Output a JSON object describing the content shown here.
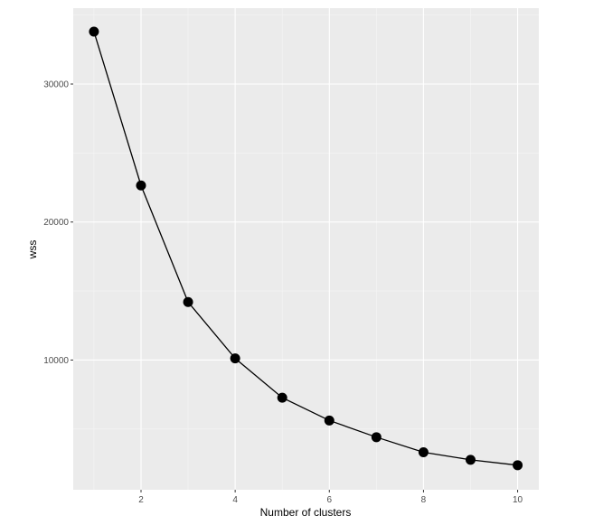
{
  "chart_data": {
    "type": "line",
    "title": "",
    "xlabel": "Number of clusters",
    "ylabel": "wss",
    "x": [
      1,
      2,
      3,
      4,
      5,
      6,
      7,
      8,
      9,
      10
    ],
    "series": [
      {
        "values": [
          33800,
          22650,
          14200,
          10120,
          7270,
          5620,
          4410,
          3320,
          2770,
          2380
        ]
      }
    ],
    "xlim": [
      0.56,
      10.45
    ],
    "ylim": [
      600,
      35500
    ],
    "x_ticks": [
      2,
      4,
      6,
      8,
      10
    ],
    "x_tick_labels": [
      "2",
      "4",
      "6",
      "8",
      "10"
    ],
    "y_ticks": [
      10000,
      20000,
      30000
    ],
    "y_tick_labels": [
      "10000",
      "20000",
      "30000"
    ],
    "grid": true,
    "legend": "none",
    "colors": {
      "panel_background": "#ebebeb",
      "grid_major": "#ffffff",
      "grid_minor": "#f5f5f5",
      "line": "#000000",
      "point": "#000000",
      "tick_text": "#4d4d4d"
    }
  }
}
